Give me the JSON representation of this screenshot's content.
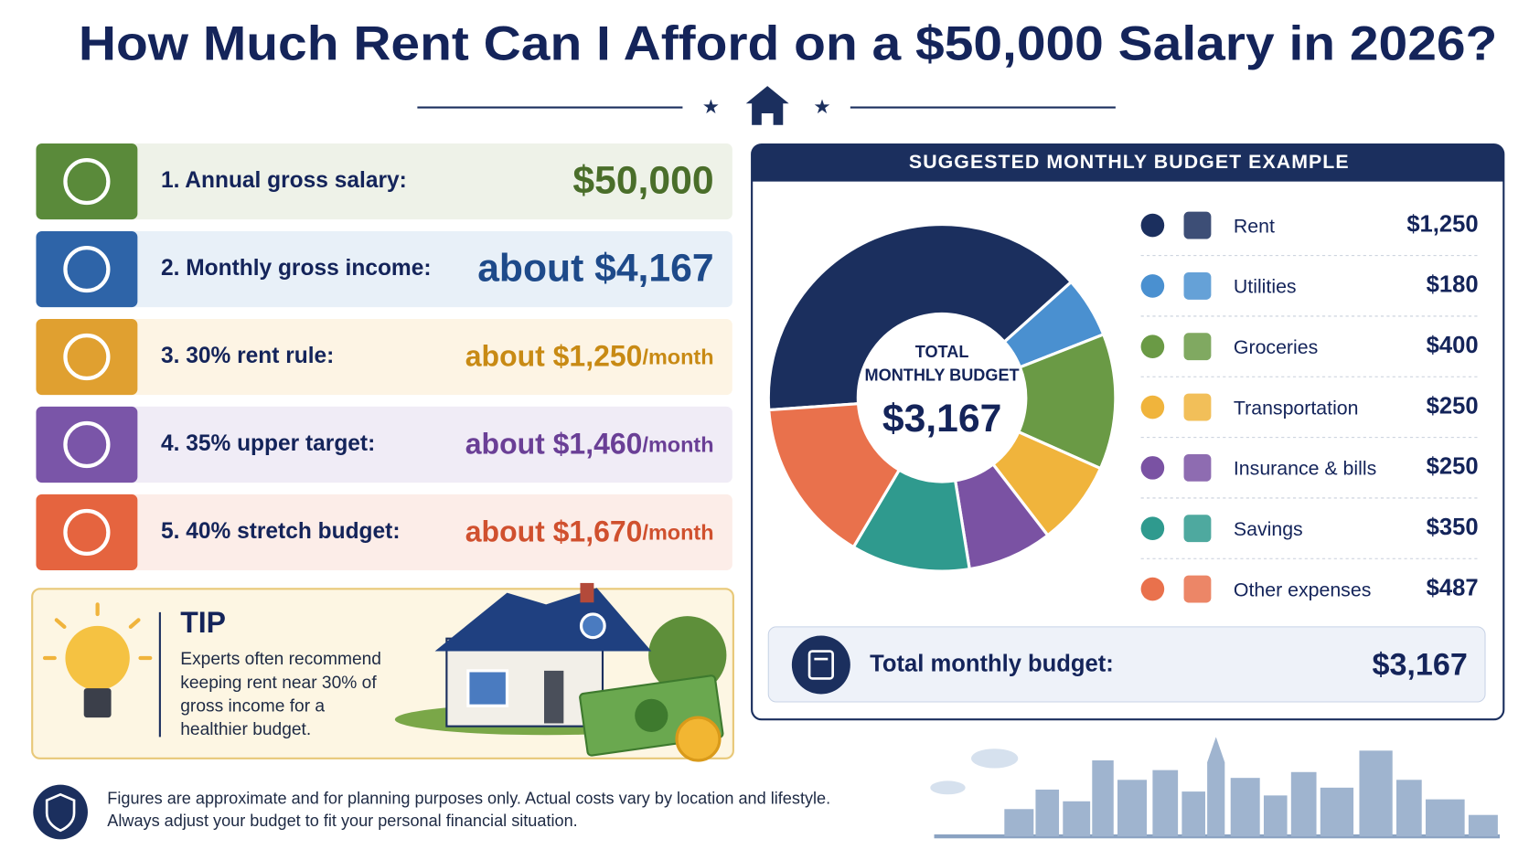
{
  "header": {
    "title": "How Much Rent Can I Afford on a $50,000 Salary in 2026?"
  },
  "steps": [
    {
      "label": "1. Annual gross salary:",
      "value": "$50,000"
    },
    {
      "label": "2. Monthly gross income:",
      "value": "about $4,167"
    },
    {
      "label": "3. 30% rent rule:",
      "value": "about $1,250",
      "unit": "/month"
    },
    {
      "label": "4. 35% upper target:",
      "value": "about $1,460",
      "unit": "/month"
    },
    {
      "label": "5. 40% stretch budget:",
      "value": "about $1,670",
      "unit": "/month"
    }
  ],
  "tip": {
    "title": "TIP",
    "lines": [
      "Experts often recommend",
      "keeping rent near 30% of",
      "gross income for a",
      "healthier budget."
    ]
  },
  "footer": {
    "lines": [
      "Figures are approximate and for planning purposes only. Actual costs vary by location and lifestyle.",
      "Always adjust your budget to fit your personal financial situation."
    ]
  },
  "chart_data": {
    "type": "pie",
    "title": "SUGGESTED MONTHLY BUDGET EXAMPLE",
    "center_label": [
      "TOTAL",
      "MONTHLY BUDGET"
    ],
    "total": {
      "value": 3167,
      "label": "$3,167"
    },
    "total_caption": "Total monthly budget:",
    "categories": [
      "Rent",
      "Utilities",
      "Groceries",
      "Transportation",
      "Insurance & bills",
      "Savings",
      "Other expenses"
    ],
    "values": [
      1250,
      180,
      400,
      250,
      250,
      350,
      487
    ],
    "value_labels": [
      "$1,250",
      "$180",
      "$400",
      "$250",
      "$250",
      "$350",
      "$487"
    ],
    "colors": [
      "#1b2f5e",
      "#4a90d0",
      "#6a9a45",
      "#f0b43c",
      "#7a52a3",
      "#2f9a8e",
      "#e9714c"
    ]
  }
}
